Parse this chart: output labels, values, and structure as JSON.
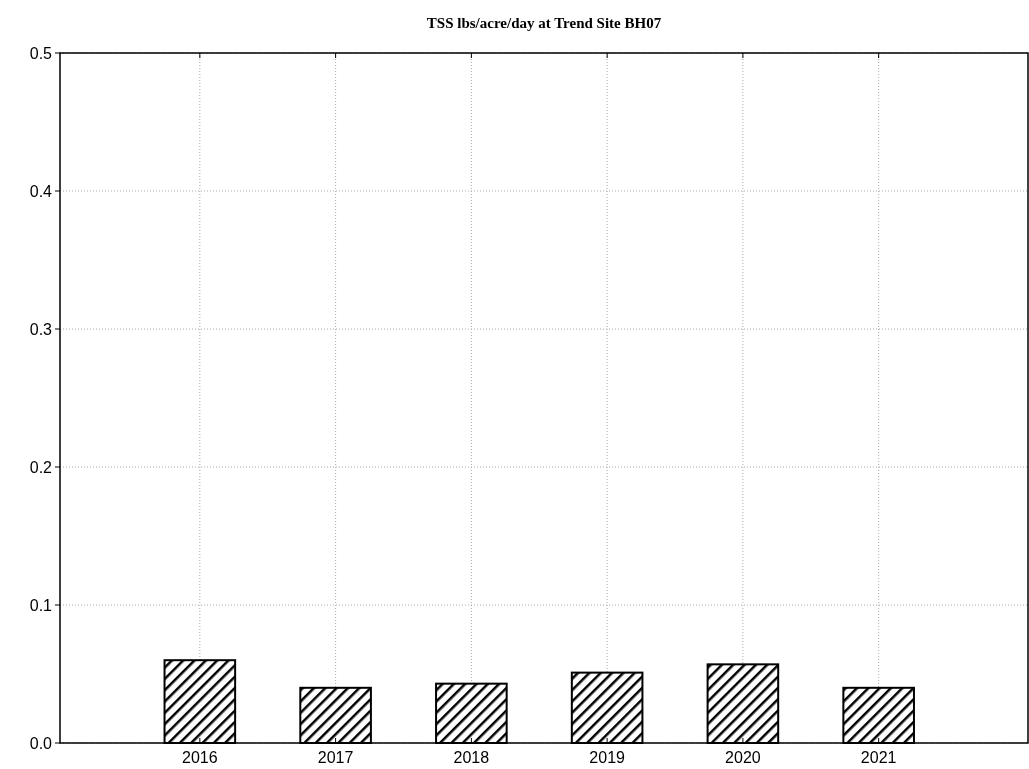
{
  "chart_data": {
    "type": "bar",
    "title": "TSS lbs/acre/day at Trend Site BH07",
    "categories": [
      "2016",
      "2017",
      "2018",
      "2019",
      "2020",
      "2021"
    ],
    "values": [
      0.06,
      0.04,
      0.043,
      0.051,
      0.057,
      0.04
    ],
    "color": "#000000",
    "ylim": [
      0,
      0.5
    ],
    "yticks": [
      {
        "value": 0,
        "label": "0.0"
      },
      {
        "value": 0.1,
        "label": "0.1"
      },
      {
        "value": 0.2,
        "label": "0.2"
      },
      {
        "value": 0.3,
        "label": "0.3"
      },
      {
        "value": 0.4,
        "label": "0.4"
      },
      {
        "value": 0.5,
        "label": "0.5"
      }
    ],
    "grid": true
  }
}
